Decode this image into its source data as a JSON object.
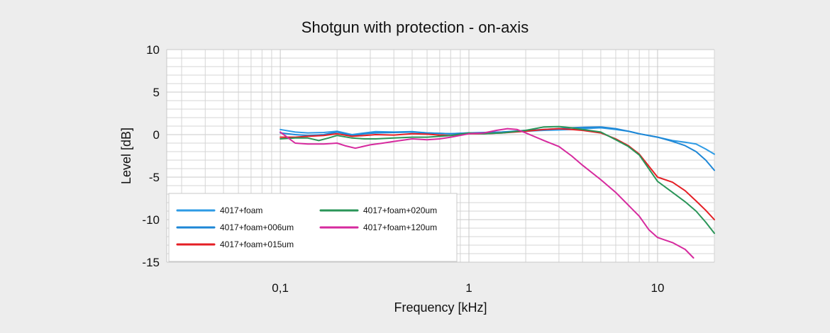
{
  "chart_data": {
    "type": "line",
    "title": "Shotgun with protection - on-axis",
    "xlabel": "Frequency [kHz]",
    "ylabel": "Level [dB]",
    "x_scale": "log",
    "xlim": [
      0.025,
      20
    ],
    "ylim": [
      -15,
      10
    ],
    "x_ticks": [
      {
        "value": 0.1,
        "label": "0,1"
      },
      {
        "value": 1,
        "label": "1"
      },
      {
        "value": 10,
        "label": "10"
      }
    ],
    "y_ticks": [
      {
        "value": 10,
        "label": "10"
      },
      {
        "value": 5,
        "label": "5"
      },
      {
        "value": 0,
        "label": "0"
      },
      {
        "value": -5,
        "label": "-5"
      },
      {
        "value": -10,
        "label": "-10"
      },
      {
        "value": -15,
        "label": "-15"
      }
    ],
    "grid": true,
    "legend": {
      "position": "bottom-left",
      "columns": 2
    },
    "series": [
      {
        "name": "4017+foam",
        "color": "#2E9BE5",
        "points": [
          [
            0.1,
            0.6
          ],
          [
            0.12,
            0.3
          ],
          [
            0.14,
            0.2
          ],
          [
            0.17,
            0.25
          ],
          [
            0.2,
            0.4
          ],
          [
            0.24,
            0.0
          ],
          [
            0.28,
            0.2
          ],
          [
            0.32,
            0.35
          ],
          [
            0.4,
            0.3
          ],
          [
            0.5,
            0.35
          ],
          [
            0.6,
            0.2
          ],
          [
            0.7,
            0.15
          ],
          [
            0.8,
            0.1
          ],
          [
            1.0,
            0.2
          ],
          [
            1.2,
            0.2
          ],
          [
            1.5,
            0.3
          ],
          [
            2.0,
            0.4
          ],
          [
            2.5,
            0.5
          ],
          [
            3.0,
            0.55
          ],
          [
            3.5,
            0.6
          ],
          [
            4.0,
            0.7
          ],
          [
            5.0,
            0.8
          ],
          [
            6.0,
            0.6
          ],
          [
            7.0,
            0.4
          ],
          [
            8.0,
            0.1
          ],
          [
            10.0,
            -0.3
          ],
          [
            12.0,
            -0.7
          ],
          [
            14.0,
            -0.9
          ],
          [
            16.0,
            -1.1
          ],
          [
            18.0,
            -1.7
          ],
          [
            20.0,
            -2.3
          ]
        ]
      },
      {
        "name": "4017+foam+006um",
        "color": "#1E87D6",
        "points": [
          [
            0.1,
            0.2
          ],
          [
            0.12,
            0.0
          ],
          [
            0.14,
            -0.1
          ],
          [
            0.17,
            0.0
          ],
          [
            0.2,
            0.3
          ],
          [
            0.24,
            -0.1
          ],
          [
            0.28,
            0.1
          ],
          [
            0.32,
            0.2
          ],
          [
            0.4,
            0.25
          ],
          [
            0.5,
            0.3
          ],
          [
            0.6,
            0.2
          ],
          [
            0.7,
            0.15
          ],
          [
            0.8,
            0.1
          ],
          [
            1.0,
            0.2
          ],
          [
            1.2,
            0.25
          ],
          [
            1.5,
            0.3
          ],
          [
            2.0,
            0.5
          ],
          [
            2.5,
            0.6
          ],
          [
            3.0,
            0.7
          ],
          [
            3.5,
            0.8
          ],
          [
            4.0,
            0.85
          ],
          [
            5.0,
            0.9
          ],
          [
            6.0,
            0.7
          ],
          [
            7.0,
            0.4
          ],
          [
            8.0,
            0.1
          ],
          [
            10.0,
            -0.3
          ],
          [
            12.0,
            -0.8
          ],
          [
            14.0,
            -1.3
          ],
          [
            16.0,
            -2.0
          ],
          [
            18.0,
            -3.0
          ],
          [
            20.0,
            -4.2
          ]
        ]
      },
      {
        "name": "4017+foam+015um",
        "color": "#E41E24",
        "points": [
          [
            0.1,
            -0.3
          ],
          [
            0.12,
            -0.3
          ],
          [
            0.14,
            -0.2
          ],
          [
            0.17,
            -0.1
          ],
          [
            0.2,
            0.1
          ],
          [
            0.24,
            -0.2
          ],
          [
            0.28,
            -0.1
          ],
          [
            0.32,
            0.0
          ],
          [
            0.4,
            -0.05
          ],
          [
            0.5,
            0.1
          ],
          [
            0.6,
            0.05
          ],
          [
            0.7,
            -0.05
          ],
          [
            0.8,
            -0.1
          ],
          [
            1.0,
            0.1
          ],
          [
            1.2,
            0.1
          ],
          [
            1.5,
            0.2
          ],
          [
            2.0,
            0.4
          ],
          [
            2.5,
            0.6
          ],
          [
            3.0,
            0.7
          ],
          [
            3.5,
            0.6
          ],
          [
            4.0,
            0.5
          ],
          [
            5.0,
            0.2
          ],
          [
            6.0,
            -0.5
          ],
          [
            7.0,
            -1.3
          ],
          [
            8.0,
            -2.3
          ],
          [
            10.0,
            -5.0
          ],
          [
            12.0,
            -5.6
          ],
          [
            14.0,
            -6.6
          ],
          [
            16.0,
            -7.8
          ],
          [
            18.0,
            -8.9
          ],
          [
            20.0,
            -10.0
          ]
        ]
      },
      {
        "name": "4017+foam+020um",
        "color": "#2A9558",
        "points": [
          [
            0.1,
            -0.5
          ],
          [
            0.12,
            -0.4
          ],
          [
            0.14,
            -0.4
          ],
          [
            0.16,
            -0.7
          ],
          [
            0.18,
            -0.4
          ],
          [
            0.2,
            -0.1
          ],
          [
            0.24,
            -0.4
          ],
          [
            0.28,
            -0.5
          ],
          [
            0.32,
            -0.5
          ],
          [
            0.4,
            -0.4
          ],
          [
            0.5,
            -0.3
          ],
          [
            0.6,
            -0.3
          ],
          [
            0.7,
            -0.2
          ],
          [
            0.8,
            -0.1
          ],
          [
            1.0,
            0.2
          ],
          [
            1.2,
            0.1
          ],
          [
            1.5,
            0.2
          ],
          [
            2.0,
            0.5
          ],
          [
            2.5,
            0.9
          ],
          [
            3.0,
            0.95
          ],
          [
            3.5,
            0.8
          ],
          [
            4.0,
            0.6
          ],
          [
            5.0,
            0.3
          ],
          [
            6.0,
            -0.6
          ],
          [
            7.0,
            -1.4
          ],
          [
            8.0,
            -2.4
          ],
          [
            10.0,
            -5.5
          ],
          [
            12.0,
            -6.8
          ],
          [
            14.0,
            -7.9
          ],
          [
            16.0,
            -9.0
          ],
          [
            18.0,
            -10.3
          ],
          [
            20.0,
            -11.6
          ]
        ]
      },
      {
        "name": "4017+foam+120um",
        "color": "#D62A9E",
        "points": [
          [
            0.1,
            0.3
          ],
          [
            0.12,
            -1.0
          ],
          [
            0.14,
            -1.1
          ],
          [
            0.17,
            -1.1
          ],
          [
            0.2,
            -1.0
          ],
          [
            0.22,
            -1.3
          ],
          [
            0.25,
            -1.6
          ],
          [
            0.3,
            -1.2
          ],
          [
            0.35,
            -1.0
          ],
          [
            0.4,
            -0.8
          ],
          [
            0.5,
            -0.5
          ],
          [
            0.6,
            -0.6
          ],
          [
            0.7,
            -0.5
          ],
          [
            0.8,
            -0.3
          ],
          [
            1.0,
            0.1
          ],
          [
            1.2,
            0.2
          ],
          [
            1.4,
            0.5
          ],
          [
            1.6,
            0.7
          ],
          [
            1.8,
            0.6
          ],
          [
            2.0,
            0.2
          ],
          [
            2.5,
            -0.7
          ],
          [
            3.0,
            -1.4
          ],
          [
            3.5,
            -2.5
          ],
          [
            4.0,
            -3.6
          ],
          [
            5.0,
            -5.3
          ],
          [
            6.0,
            -6.8
          ],
          [
            7.0,
            -8.3
          ],
          [
            8.0,
            -9.6
          ],
          [
            9.0,
            -11.2
          ],
          [
            10.0,
            -12.1
          ],
          [
            12.0,
            -12.7
          ],
          [
            14.0,
            -13.5
          ],
          [
            15.5,
            -14.5
          ]
        ]
      }
    ]
  }
}
